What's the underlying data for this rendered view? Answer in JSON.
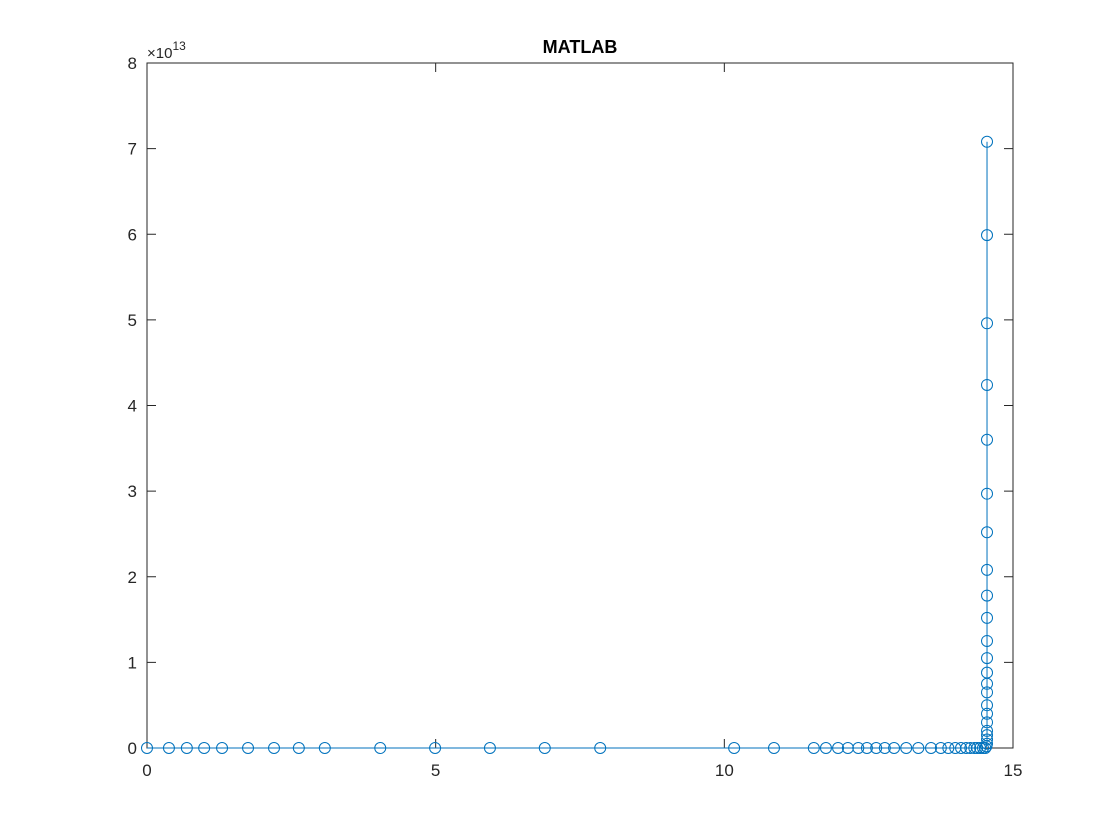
{
  "chart_data": {
    "type": "line",
    "title": "MATLAB",
    "y_multiplier": "×10",
    "y_exponent": "13",
    "marker": "circle",
    "color": "#0072BD",
    "x": [
      0,
      0.38,
      0.69,
      0.99,
      1.3,
      1.75,
      2.2,
      2.63,
      3.08,
      4.04,
      4.99,
      5.94,
      6.89,
      7.85,
      10.17,
      10.86,
      11.55,
      11.76,
      11.97,
      12.14,
      12.32,
      12.47,
      12.63,
      12.78,
      12.94,
      13.15,
      13.36,
      13.58,
      13.75,
      13.88,
      14.0,
      14.1,
      14.19,
      14.26,
      14.33,
      14.38,
      14.43,
      14.48,
      14.52,
      14.54,
      14.55,
      14.55,
      14.55,
      14.55,
      14.55,
      14.55,
      14.55,
      14.55,
      14.55,
      14.55,
      14.55,
      14.55,
      14.55,
      14.55,
      14.55,
      14.55,
      14.55,
      14.55,
      14.55,
      14.55,
      14.55,
      14.55
    ],
    "values": [
      0,
      0,
      0,
      0,
      0,
      0,
      0,
      0,
      0,
      0,
      0,
      0,
      0,
      0,
      0,
      0,
      0,
      0,
      0,
      0,
      0,
      0,
      0,
      0,
      0,
      0,
      0,
      0,
      0,
      0,
      0,
      0,
      0,
      0,
      0,
      0,
      0,
      0,
      0,
      200000000000.0,
      500000000000.0,
      1000000000000.0,
      1500000000000.0,
      2000000000000.0,
      3000000000000.0,
      4000000000000.0,
      5000000000000.0,
      6500000000000.0,
      7500000000000.0,
      8800000000000.0,
      10500000000000.0,
      12500000000000.0,
      15200000000000.0,
      17800000000000.0,
      20800000000000.0,
      25200000000000.0,
      29700000000000.0,
      36000000000000.0,
      42400000000000.0,
      49600000000000.0,
      59900000000000.0,
      70800000000000.0
    ],
    "xlim": [
      0,
      15
    ],
    "xticks": [
      0,
      5,
      10,
      15
    ],
    "ylim": [
      0,
      80000000000000.0
    ],
    "yticks": [
      0,
      {
        "value": 10000000000000.0,
        "label": "1"
      },
      {
        "value": 20000000000000.0,
        "label": "2"
      },
      {
        "value": 30000000000000.0,
        "label": "3"
      },
      {
        "value": 40000000000000.0,
        "label": "4"
      },
      {
        "value": 50000000000000.0,
        "label": "5"
      },
      {
        "value": 60000000000000.0,
        "label": "6"
      },
      {
        "value": 70000000000000.0,
        "label": "7"
      },
      {
        "value": 80000000000000.0,
        "label": "8"
      }
    ],
    "grid": false
  }
}
